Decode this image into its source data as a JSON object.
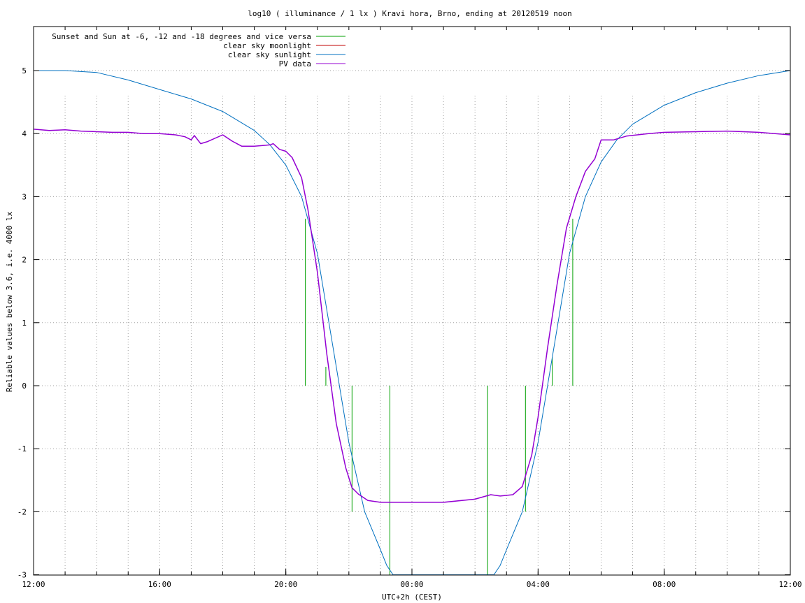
{
  "chart_data": {
    "type": "line",
    "title": "log10 ( illuminance / 1 lx ) Kravi hora, Brno, ending at 20120519 noon",
    "xlabel": "UTC+2h (CEST)",
    "ylabel": "Reliable values below 3.6, i.e. 4000 lx",
    "x_unit": "hours since 12:00",
    "xlim": [
      0,
      24
    ],
    "ylim": [
      -3,
      5.7
    ],
    "grid": true,
    "legend_position": "top-left",
    "x_ticks": [
      {
        "x": 0,
        "label": "12:00"
      },
      {
        "x": 4,
        "label": "16:00"
      },
      {
        "x": 8,
        "label": "20:00"
      },
      {
        "x": 12,
        "label": "00:00"
      },
      {
        "x": 16,
        "label": "04:00"
      },
      {
        "x": 20,
        "label": "08:00"
      },
      {
        "x": 24,
        "label": "12:00"
      }
    ],
    "y_ticks": [
      {
        "y": -3,
        "label": "-3"
      },
      {
        "y": -2,
        "label": "-2"
      },
      {
        "y": -1,
        "label": "-1"
      },
      {
        "y": 0,
        "label": "0"
      },
      {
        "y": 1,
        "label": "1"
      },
      {
        "y": 2,
        "label": "2"
      },
      {
        "y": 3,
        "label": "3"
      },
      {
        "y": 4,
        "label": "4"
      },
      {
        "y": 5,
        "label": "5"
      }
    ],
    "series": [
      {
        "name": "Sunset and Sun at -6, -12 and -18 degrees and vice versa",
        "color": "#00a000",
        "kind": "impulses",
        "points": [
          {
            "x": 8.62,
            "y0": 0,
            "y1": 2.65
          },
          {
            "x": 9.27,
            "y0": 0,
            "y1": 0.3
          },
          {
            "x": 10.1,
            "y0": -2.0,
            "y1": 0
          },
          {
            "x": 11.3,
            "y0": -3.0,
            "y1": 0
          },
          {
            "x": 14.4,
            "y0": -3.0,
            "y1": 0
          },
          {
            "x": 15.6,
            "y0": -2.0,
            "y1": 0
          },
          {
            "x": 16.45,
            "y0": 0,
            "y1": 0.45
          },
          {
            "x": 17.1,
            "y0": 0,
            "y1": 2.65
          }
        ]
      },
      {
        "name": "clear sky moonlight",
        "color": "#c00000",
        "kind": "line",
        "points": []
      },
      {
        "name": "clear sky sunlight",
        "color": "#0070c0",
        "kind": "line",
        "points": [
          [
            0,
            5.0
          ],
          [
            1,
            5.0
          ],
          [
            2,
            4.97
          ],
          [
            3,
            4.85
          ],
          [
            4,
            4.7
          ],
          [
            5,
            4.55
          ],
          [
            6,
            4.35
          ],
          [
            7,
            4.05
          ],
          [
            7.5,
            3.82
          ],
          [
            8,
            3.5
          ],
          [
            8.5,
            3.0
          ],
          [
            9,
            2.1
          ],
          [
            9.5,
            0.6
          ],
          [
            10,
            -0.9
          ],
          [
            10.5,
            -2.0
          ],
          [
            11,
            -2.6
          ],
          [
            11.2,
            -2.85
          ],
          [
            11.4,
            -3.0
          ],
          [
            14.6,
            -3.0
          ],
          [
            14.8,
            -2.85
          ],
          [
            15,
            -2.6
          ],
          [
            15.5,
            -2.0
          ],
          [
            16,
            -0.9
          ],
          [
            16.5,
            0.6
          ],
          [
            17,
            2.1
          ],
          [
            17.5,
            3.0
          ],
          [
            18,
            3.55
          ],
          [
            18.5,
            3.9
          ],
          [
            19,
            4.15
          ],
          [
            20,
            4.45
          ],
          [
            21,
            4.65
          ],
          [
            22,
            4.8
          ],
          [
            23,
            4.92
          ],
          [
            24,
            5.0
          ]
        ]
      },
      {
        "name": "PV data",
        "color": "#9400d3",
        "kind": "line",
        "points": [
          [
            0,
            4.07
          ],
          [
            0.5,
            4.05
          ],
          [
            1,
            4.06
          ],
          [
            1.5,
            4.04
          ],
          [
            2,
            4.03
          ],
          [
            2.5,
            4.02
          ],
          [
            3,
            4.02
          ],
          [
            3.5,
            4.0
          ],
          [
            4,
            4.0
          ],
          [
            4.5,
            3.98
          ],
          [
            4.8,
            3.95
          ],
          [
            5,
            3.9
          ],
          [
            5.1,
            3.97
          ],
          [
            5.3,
            3.84
          ],
          [
            5.5,
            3.87
          ],
          [
            6,
            3.98
          ],
          [
            6.3,
            3.88
          ],
          [
            6.6,
            3.8
          ],
          [
            7,
            3.8
          ],
          [
            7.5,
            3.82
          ],
          [
            7.6,
            3.84
          ],
          [
            7.8,
            3.75
          ],
          [
            8,
            3.72
          ],
          [
            8.2,
            3.62
          ],
          [
            8.5,
            3.3
          ],
          [
            8.7,
            2.8
          ],
          [
            9,
            1.8
          ],
          [
            9.3,
            0.5
          ],
          [
            9.6,
            -0.6
          ],
          [
            9.9,
            -1.3
          ],
          [
            10.1,
            -1.62
          ],
          [
            10.3,
            -1.72
          ],
          [
            10.6,
            -1.82
          ],
          [
            11,
            -1.85
          ],
          [
            12,
            -1.85
          ],
          [
            13,
            -1.85
          ],
          [
            14,
            -1.8
          ],
          [
            14.5,
            -1.73
          ],
          [
            14.8,
            -1.75
          ],
          [
            15.2,
            -1.73
          ],
          [
            15.5,
            -1.6
          ],
          [
            15.8,
            -1.1
          ],
          [
            16,
            -0.5
          ],
          [
            16.3,
            0.6
          ],
          [
            16.6,
            1.6
          ],
          [
            16.9,
            2.5
          ],
          [
            17.2,
            3.0
          ],
          [
            17.5,
            3.4
          ],
          [
            17.8,
            3.6
          ],
          [
            18,
            3.9
          ],
          [
            18.4,
            3.9
          ],
          [
            18.8,
            3.96
          ],
          [
            19.5,
            4.0
          ],
          [
            20,
            4.02
          ],
          [
            21,
            4.03
          ],
          [
            22,
            4.04
          ],
          [
            23,
            4.02
          ],
          [
            24,
            3.98
          ]
        ]
      }
    ]
  }
}
